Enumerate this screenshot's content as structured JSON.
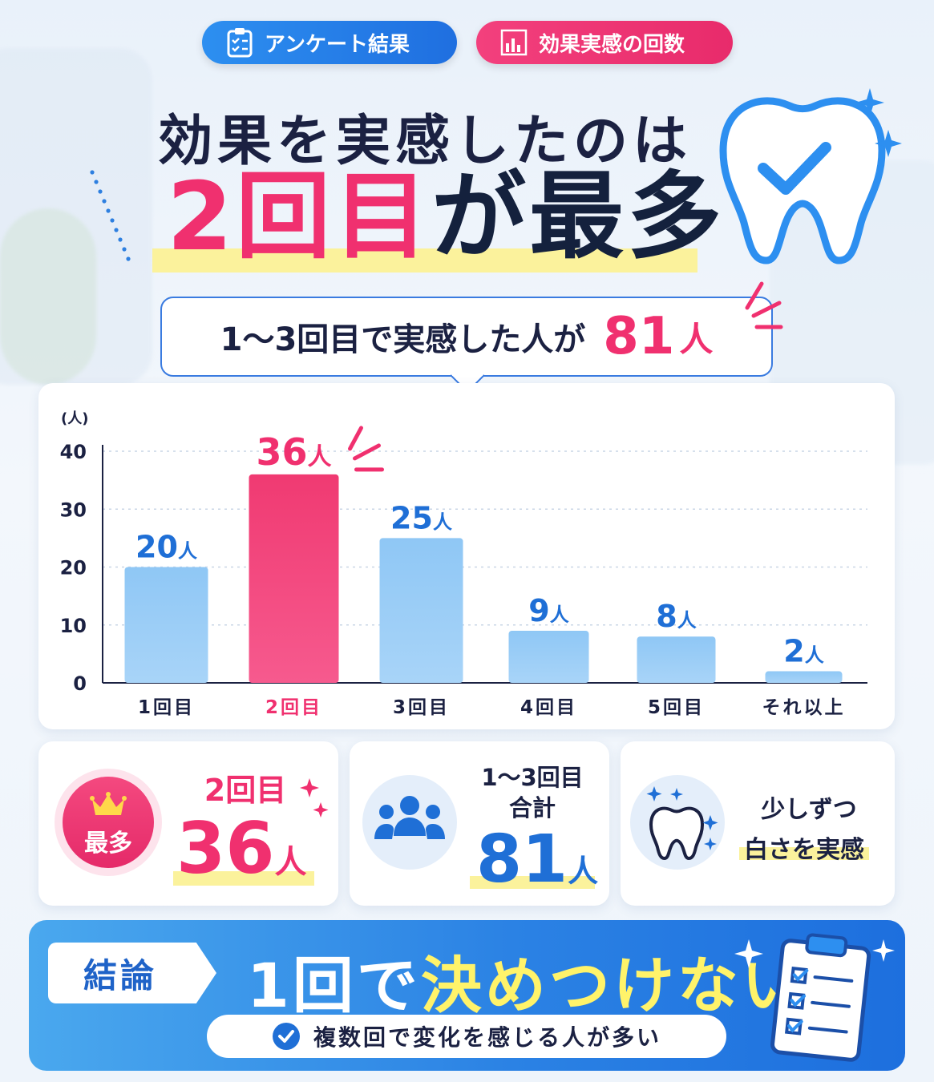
{
  "badges": {
    "survey": "アンケート結果",
    "effect": "効果実感の回数"
  },
  "headline": {
    "line1": "効果を実感したのは",
    "line2_highlight": "2回目",
    "line2_rest": "が最多"
  },
  "callout": {
    "text": "1〜3回目で実感した人が",
    "number": "81",
    "unit": "人"
  },
  "chart_data": {
    "type": "bar",
    "categories": [
      "1回目",
      "2回目",
      "3回目",
      "4回目",
      "5回目",
      "それ以上"
    ],
    "values": [
      20,
      36,
      25,
      9,
      8,
      2
    ],
    "value_suffix": "人",
    "ylabel": "(人)",
    "ylim": [
      0,
      40
    ],
    "yticks": [
      0,
      10,
      20,
      30,
      40
    ],
    "highlight_index": 1,
    "colors": {
      "bar": "#8cc4f4",
      "highlight": "#f0306f",
      "label": "#1f6fd6",
      "highlight_label": "#f0306f"
    }
  },
  "stats": {
    "max": {
      "badge": "最多",
      "label": "2回目",
      "value": "36",
      "unit": "人"
    },
    "total": {
      "label1": "1〜3回目",
      "label2": "合計",
      "value": "81",
      "unit": "人"
    },
    "white": {
      "line1": "少しずつ",
      "line2": "白さを実感"
    }
  },
  "conclusion": {
    "tag": "結論",
    "main_prefix": "1回で",
    "main_highlight": "決めつけない",
    "sub": "複数回で変化を感じる人が多い"
  },
  "icons": {
    "survey_badge": "clipboard-icon",
    "effect_badge": "bar-chart-icon",
    "tooth": "tooth-check-icon",
    "crown": "crown-icon",
    "people": "people-icon",
    "sparkle_tooth": "sparkle-tooth-icon",
    "check": "check-circle-icon",
    "checklist": "checklist-icon"
  }
}
